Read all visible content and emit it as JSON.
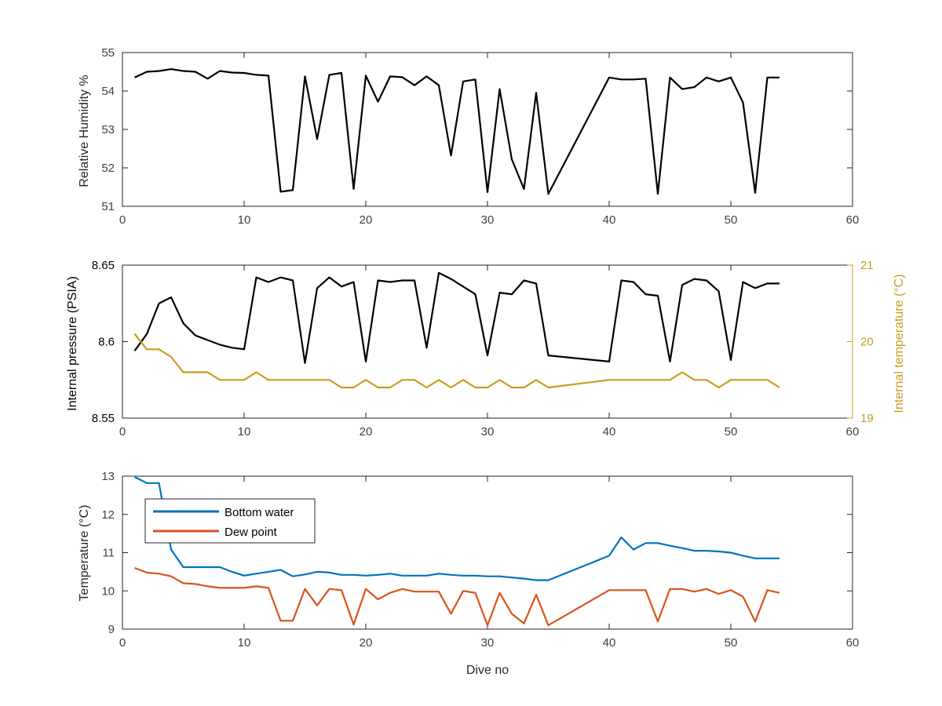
{
  "colors": {
    "black": "#000000",
    "axis": "#262626",
    "tick_text": "#404040",
    "temp_axis": "#C89B1F",
    "bottom_water": "#0072BD",
    "dew_point": "#D95319"
  },
  "chart_data": [
    {
      "type": "line",
      "xlabel": "",
      "ylabel": "Relative Humidity %",
      "xlim": [
        0,
        60
      ],
      "ylim": [
        51,
        55
      ],
      "xticks": [
        0,
        10,
        20,
        30,
        40,
        50,
        60
      ],
      "yticks": [
        51,
        52,
        53,
        54,
        55
      ],
      "grid": false,
      "series": [
        {
          "color": "#000000",
          "x": [
            1,
            2,
            3,
            4,
            5,
            6,
            7,
            8,
            9,
            10,
            11,
            12,
            13,
            14,
            15,
            16,
            17,
            18,
            19,
            20,
            21,
            22,
            23,
            24,
            25,
            26,
            27,
            28,
            29,
            30,
            31,
            32,
            33,
            34,
            35,
            40,
            41,
            42,
            43,
            44,
            45,
            46,
            47,
            48,
            49,
            50,
            51,
            52,
            53,
            54
          ],
          "y": [
            54.35,
            54.5,
            54.52,
            54.57,
            54.52,
            54.5,
            54.32,
            54.52,
            54.48,
            54.47,
            54.42,
            54.4,
            51.38,
            51.42,
            54.38,
            52.75,
            54.42,
            54.47,
            51.45,
            54.4,
            53.72,
            54.38,
            54.36,
            54.15,
            54.38,
            54.15,
            52.32,
            54.25,
            54.3,
            51.37,
            54.05,
            52.22,
            51.45,
            53.95,
            51.32,
            54.35,
            54.3,
            54.3,
            54.32,
            51.32,
            54.35,
            54.05,
            54.1,
            54.35,
            54.25,
            54.35,
            53.7,
            51.35,
            54.35,
            54.35
          ]
        }
      ]
    },
    {
      "type": "line",
      "xlabel": "",
      "ylabel": "Internal pressure (PSIA)",
      "y2label": "Internal temperature (°C)",
      "xlim": [
        0,
        60
      ],
      "ylim": [
        8.55,
        8.65
      ],
      "y2lim": [
        19,
        21
      ],
      "xticks": [
        0,
        10,
        20,
        30,
        40,
        50,
        60
      ],
      "yticks": [
        8.55,
        8.6,
        8.65
      ],
      "ytick_labels": [
        "8.55",
        "8.6",
        "8.65"
      ],
      "y2ticks": [
        19,
        20,
        21
      ],
      "grid": false,
      "series": [
        {
          "axis": "left",
          "color": "#000000",
          "x": [
            1,
            2,
            3,
            4,
            5,
            6,
            7,
            8,
            9,
            10,
            11,
            12,
            13,
            14,
            15,
            16,
            17,
            18,
            19,
            20,
            21,
            22,
            23,
            24,
            25,
            26,
            27,
            28,
            29,
            30,
            31,
            32,
            33,
            34,
            35,
            40,
            41,
            42,
            43,
            44,
            45,
            46,
            47,
            48,
            49,
            50,
            51,
            52,
            53,
            54
          ],
          "y": [
            8.594,
            8.605,
            8.625,
            8.629,
            8.612,
            8.604,
            8.601,
            8.598,
            8.596,
            8.595,
            8.642,
            8.639,
            8.642,
            8.64,
            8.586,
            8.635,
            8.642,
            8.636,
            8.639,
            8.587,
            8.64,
            8.639,
            8.64,
            8.64,
            8.596,
            8.645,
            8.641,
            8.636,
            8.631,
            8.591,
            8.632,
            8.631,
            8.64,
            8.638,
            8.591,
            8.587,
            8.64,
            8.639,
            8.631,
            8.63,
            8.587,
            8.637,
            8.641,
            8.64,
            8.633,
            8.588,
            8.639,
            8.635,
            8.638,
            8.638
          ]
        },
        {
          "axis": "right",
          "color": "#C89B1F",
          "x": [
            1,
            2,
            3,
            4,
            5,
            6,
            7,
            8,
            9,
            10,
            11,
            12,
            13,
            14,
            15,
            16,
            17,
            18,
            19,
            20,
            21,
            22,
            23,
            24,
            25,
            26,
            27,
            28,
            29,
            30,
            31,
            32,
            33,
            34,
            35,
            40,
            41,
            42,
            43,
            44,
            45,
            46,
            47,
            48,
            49,
            50,
            51,
            52,
            53,
            54
          ],
          "y": [
            20.1,
            19.9,
            19.9,
            19.8,
            19.6,
            19.6,
            19.6,
            19.5,
            19.5,
            19.5,
            19.6,
            19.5,
            19.5,
            19.5,
            19.5,
            19.5,
            19.5,
            19.4,
            19.4,
            19.5,
            19.4,
            19.4,
            19.5,
            19.5,
            19.4,
            19.5,
            19.4,
            19.5,
            19.4,
            19.4,
            19.5,
            19.4,
            19.4,
            19.5,
            19.4,
            19.5,
            19.5,
            19.5,
            19.5,
            19.5,
            19.5,
            19.6,
            19.5,
            19.5,
            19.4,
            19.5,
            19.5,
            19.5,
            19.5,
            19.4
          ]
        }
      ]
    },
    {
      "type": "line",
      "xlabel": "Dive no",
      "ylabel": "Temperature (°C)",
      "xlim": [
        0,
        60
      ],
      "ylim": [
        9,
        13
      ],
      "xticks": [
        0,
        10,
        20,
        30,
        40,
        50,
        60
      ],
      "yticks": [
        9,
        10,
        11,
        12,
        13
      ],
      "grid": false,
      "legend": "top-left",
      "series": [
        {
          "name": "Bottom water",
          "color": "#0072BD",
          "x": [
            1,
            2,
            3,
            4,
            5,
            6,
            7,
            8,
            9,
            10,
            11,
            12,
            13,
            14,
            15,
            16,
            17,
            18,
            19,
            20,
            21,
            22,
            23,
            24,
            25,
            26,
            27,
            28,
            29,
            30,
            31,
            32,
            33,
            34,
            35,
            40,
            41,
            42,
            43,
            44,
            45,
            46,
            47,
            48,
            49,
            50,
            51,
            52,
            53,
            54
          ],
          "y": [
            12.98,
            12.82,
            12.82,
            11.08,
            10.62,
            10.62,
            10.62,
            10.62,
            10.5,
            10.4,
            10.45,
            10.5,
            10.55,
            10.38,
            10.43,
            10.5,
            10.48,
            10.42,
            10.42,
            10.4,
            10.42,
            10.45,
            10.4,
            10.4,
            10.4,
            10.45,
            10.42,
            10.4,
            10.4,
            10.38,
            10.38,
            10.35,
            10.32,
            10.28,
            10.28,
            10.92,
            11.4,
            11.08,
            11.25,
            11.25,
            11.18,
            11.12,
            11.05,
            11.05,
            11.03,
            11.0,
            10.92,
            10.85,
            10.85,
            10.85
          ]
        },
        {
          "name": "Dew point",
          "color": "#D95319",
          "x": [
            1,
            2,
            3,
            4,
            5,
            6,
            7,
            8,
            9,
            10,
            11,
            12,
            13,
            14,
            15,
            16,
            17,
            18,
            19,
            20,
            21,
            22,
            23,
            24,
            25,
            26,
            27,
            28,
            29,
            30,
            31,
            32,
            33,
            34,
            35,
            40,
            41,
            42,
            43,
            44,
            45,
            46,
            47,
            48,
            49,
            50,
            51,
            52,
            53,
            54
          ],
          "y": [
            10.6,
            10.48,
            10.45,
            10.38,
            10.2,
            10.18,
            10.12,
            10.08,
            10.08,
            10.08,
            10.12,
            10.08,
            9.22,
            9.22,
            10.05,
            9.62,
            10.05,
            10.02,
            9.12,
            10.05,
            9.78,
            9.95,
            10.05,
            9.98,
            9.98,
            9.98,
            9.4,
            10.0,
            9.95,
            9.1,
            9.95,
            9.4,
            9.15,
            9.9,
            9.1,
            10.02,
            10.02,
            10.02,
            10.02,
            9.2,
            10.05,
            10.05,
            9.98,
            10.05,
            9.92,
            10.02,
            9.85,
            9.2,
            10.02,
            9.95
          ]
        }
      ]
    }
  ]
}
